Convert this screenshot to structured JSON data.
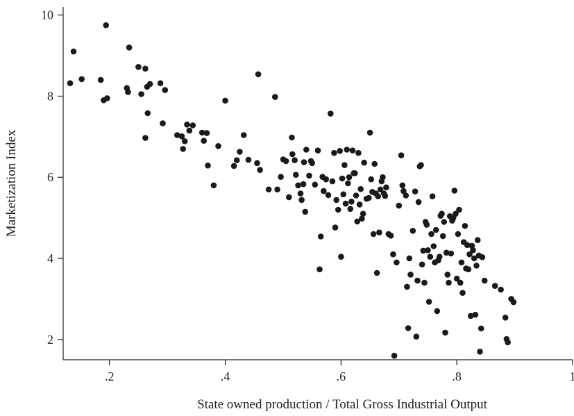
{
  "chart_data": {
    "type": "scatter",
    "xlabel": "State owned production / Total Gross Industrial Output",
    "ylabel": "Marketization Index",
    "xlim": [
      0.12,
      1.0
    ],
    "ylim": [
      1.5,
      10.2
    ],
    "xticks": [
      0.2,
      0.4,
      0.6,
      0.8,
      1.0
    ],
    "xtick_labels": [
      ".2",
      ".4",
      ".6",
      ".8",
      "1"
    ],
    "yticks": [
      2,
      4,
      6,
      8,
      10
    ],
    "ytick_labels": [
      "2",
      "4",
      "6",
      "8",
      "10"
    ],
    "grid": false,
    "legend": "none",
    "marker_color": "#1a1a1a",
    "points": [
      [
        0.132,
        8.32
      ],
      [
        0.138,
        9.1
      ],
      [
        0.152,
        8.42
      ],
      [
        0.185,
        8.4
      ],
      [
        0.19,
        7.9
      ],
      [
        0.194,
        9.75
      ],
      [
        0.196,
        7.95
      ],
      [
        0.23,
        8.2
      ],
      [
        0.232,
        8.1
      ],
      [
        0.234,
        9.2
      ],
      [
        0.25,
        8.72
      ],
      [
        0.255,
        8.05
      ],
      [
        0.262,
        8.68
      ],
      [
        0.265,
        8.23
      ],
      [
        0.27,
        8.3
      ],
      [
        0.288,
        8.32
      ],
      [
        0.296,
        8.15
      ],
      [
        0.262,
        6.97
      ],
      [
        0.266,
        7.58
      ],
      [
        0.292,
        7.33
      ],
      [
        0.317,
        7.04
      ],
      [
        0.325,
        7.01
      ],
      [
        0.327,
        6.7
      ],
      [
        0.33,
        6.89
      ],
      [
        0.334,
        7.3
      ],
      [
        0.338,
        7.15
      ],
      [
        0.344,
        7.28
      ],
      [
        0.36,
        7.1
      ],
      [
        0.363,
        6.9
      ],
      [
        0.368,
        7.09
      ],
      [
        0.37,
        6.29
      ],
      [
        0.38,
        5.8
      ],
      [
        0.388,
        6.77
      ],
      [
        0.4,
        7.89
      ],
      [
        0.415,
        6.28
      ],
      [
        0.42,
        6.42
      ],
      [
        0.425,
        6.63
      ],
      [
        0.432,
        7.04
      ],
      [
        0.44,
        6.43
      ],
      [
        0.455,
        6.35
      ],
      [
        0.457,
        8.54
      ],
      [
        0.46,
        6.18
      ],
      [
        0.475,
        5.7
      ],
      [
        0.486,
        7.98
      ],
      [
        0.49,
        5.7
      ],
      [
        0.496,
        6.01
      ],
      [
        0.5,
        6.44
      ],
      [
        0.505,
        6.4
      ],
      [
        0.51,
        5.51
      ],
      [
        0.515,
        6.98
      ],
      [
        0.516,
        6.57
      ],
      [
        0.52,
        6.42
      ],
      [
        0.522,
        6.06
      ],
      [
        0.526,
        5.8
      ],
      [
        0.53,
        5.6
      ],
      [
        0.532,
        5.44
      ],
      [
        0.535,
        5.83
      ],
      [
        0.536,
        6.37
      ],
      [
        0.538,
        5.15
      ],
      [
        0.54,
        6.68
      ],
      [
        0.545,
        6.04
      ],
      [
        0.548,
        6.4
      ],
      [
        0.55,
        6.35
      ],
      [
        0.555,
        5.82
      ],
      [
        0.56,
        6.66
      ],
      [
        0.563,
        3.73
      ],
      [
        0.565,
        4.54
      ],
      [
        0.568,
        6.01
      ],
      [
        0.57,
        5.66
      ],
      [
        0.574,
        5.95
      ],
      [
        0.578,
        5.56
      ],
      [
        0.582,
        7.57
      ],
      [
        0.585,
        5.9
      ],
      [
        0.588,
        6.6
      ],
      [
        0.59,
        4.76
      ],
      [
        0.592,
        5.44
      ],
      [
        0.595,
        5.2
      ],
      [
        0.598,
        6.65
      ],
      [
        0.6,
        4.04
      ],
      [
        0.602,
        5.97
      ],
      [
        0.604,
        5.58
      ],
      [
        0.606,
        6.3
      ],
      [
        0.608,
        5.35
      ],
      [
        0.61,
        6.68
      ],
      [
        0.612,
        5.85
      ],
      [
        0.614,
        6.0
      ],
      [
        0.616,
        5.22
      ],
      [
        0.618,
        5.4
      ],
      [
        0.62,
        6.66
      ],
      [
        0.622,
        6.1
      ],
      [
        0.624,
        6.1
      ],
      [
        0.626,
        5.55
      ],
      [
        0.628,
        4.91
      ],
      [
        0.63,
        6.6
      ],
      [
        0.632,
        5.33
      ],
      [
        0.634,
        5.71
      ],
      [
        0.636,
        4.98
      ],
      [
        0.638,
        5.1
      ],
      [
        0.64,
        6.36
      ],
      [
        0.644,
        5.47
      ],
      [
        0.648,
        5.49
      ],
      [
        0.65,
        7.1
      ],
      [
        0.652,
        5.95
      ],
      [
        0.654,
        5.64
      ],
      [
        0.656,
        4.6
      ],
      [
        0.658,
        6.33
      ],
      [
        0.66,
        5.6
      ],
      [
        0.662,
        3.64
      ],
      [
        0.664,
        5.53
      ],
      [
        0.666,
        4.64
      ],
      [
        0.668,
        5.7
      ],
      [
        0.67,
        5.9
      ],
      [
        0.672,
        6.0
      ],
      [
        0.674,
        5.6
      ],
      [
        0.676,
        5.54
      ],
      [
        0.678,
        5.75
      ],
      [
        0.682,
        4.6
      ],
      [
        0.686,
        4.56
      ],
      [
        0.69,
        4.1
      ],
      [
        0.692,
        1.6
      ],
      [
        0.696,
        3.9
      ],
      [
        0.7,
        5.3
      ],
      [
        0.704,
        6.54
      ],
      [
        0.706,
        5.8
      ],
      [
        0.708,
        5.66
      ],
      [
        0.712,
        5.55
      ],
      [
        0.714,
        3.3
      ],
      [
        0.716,
        2.28
      ],
      [
        0.718,
        4.0
      ],
      [
        0.72,
        3.6
      ],
      [
        0.724,
        4.68
      ],
      [
        0.728,
        5.65
      ],
      [
        0.73,
        2.07
      ],
      [
        0.732,
        3.45
      ],
      [
        0.734,
        5.39
      ],
      [
        0.736,
        6.27
      ],
      [
        0.738,
        6.3
      ],
      [
        0.74,
        3.85
      ],
      [
        0.742,
        4.19
      ],
      [
        0.744,
        3.4
      ],
      [
        0.746,
        4.9
      ],
      [
        0.748,
        4.83
      ],
      [
        0.75,
        4.2
      ],
      [
        0.752,
        2.93
      ],
      [
        0.754,
        4.04
      ],
      [
        0.756,
        4.6
      ],
      [
        0.758,
        5.53
      ],
      [
        0.76,
        4.3
      ],
      [
        0.762,
        3.9
      ],
      [
        0.764,
        4.7
      ],
      [
        0.766,
        2.7
      ],
      [
        0.768,
        3.95
      ],
      [
        0.77,
        4.04
      ],
      [
        0.772,
        5.05
      ],
      [
        0.774,
        5.1
      ],
      [
        0.776,
        4.55
      ],
      [
        0.778,
        4.9
      ],
      [
        0.78,
        2.17
      ],
      [
        0.782,
        4.14
      ],
      [
        0.784,
        3.6
      ],
      [
        0.786,
        3.4
      ],
      [
        0.788,
        5.04
      ],
      [
        0.79,
        4.12
      ],
      [
        0.792,
        4.93
      ],
      [
        0.794,
        5.0
      ],
      [
        0.796,
        5.67
      ],
      [
        0.798,
        5.1
      ],
      [
        0.8,
        3.5
      ],
      [
        0.802,
        4.6
      ],
      [
        0.804,
        5.2
      ],
      [
        0.806,
        3.4
      ],
      [
        0.808,
        3.9
      ],
      [
        0.81,
        3.15
      ],
      [
        0.812,
        4.4
      ],
      [
        0.814,
        4.8
      ],
      [
        0.816,
        3.75
      ],
      [
        0.818,
        4.33
      ],
      [
        0.82,
        3.73
      ],
      [
        0.822,
        4.1
      ],
      [
        0.824,
        2.58
      ],
      [
        0.826,
        4.31
      ],
      [
        0.828,
        4.2
      ],
      [
        0.83,
        4.0
      ],
      [
        0.832,
        2.61
      ],
      [
        0.834,
        3.82
      ],
      [
        0.836,
        4.45
      ],
      [
        0.838,
        4.07
      ],
      [
        0.84,
        1.7
      ],
      [
        0.842,
        2.27
      ],
      [
        0.844,
        4.03
      ],
      [
        0.848,
        3.45
      ],
      [
        0.866,
        3.32
      ],
      [
        0.876,
        3.23
      ],
      [
        0.884,
        2.54
      ],
      [
        0.886,
        2.01
      ],
      [
        0.888,
        1.93
      ],
      [
        0.894,
        3.0
      ],
      [
        0.898,
        2.92
      ]
    ]
  }
}
